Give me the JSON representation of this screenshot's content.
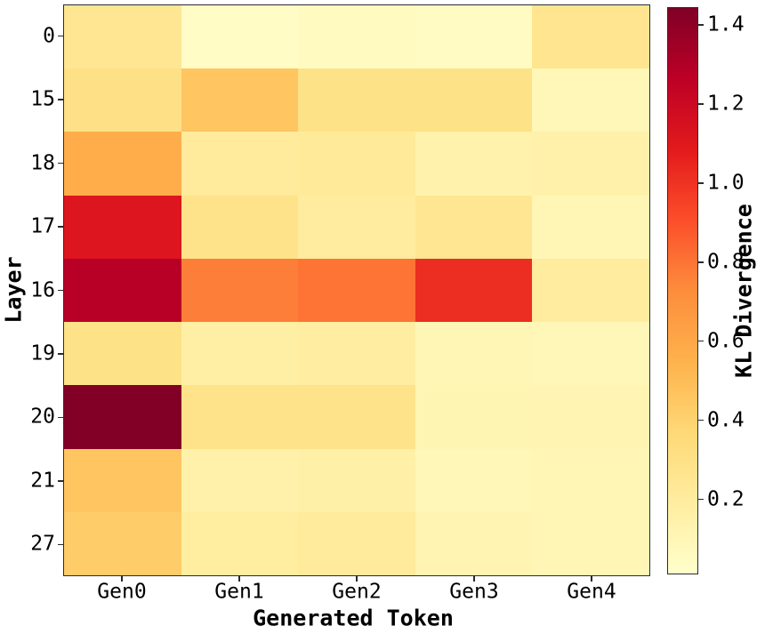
{
  "figure": {
    "background": "#ffffff",
    "spine_color": "#2b2b2b",
    "text_color": "#000000"
  },
  "chart_data": {
    "type": "heatmap",
    "title": "",
    "xlabel": "Generated Token",
    "ylabel": "Layer",
    "colorbar_label": "KL Divergence",
    "x_categories": [
      "Gen0",
      "Gen1",
      "Gen2",
      "Gen3",
      "Gen4"
    ],
    "y_categories": [
      "0",
      "15",
      "18",
      "17",
      "16",
      "19",
      "20",
      "21",
      "27"
    ],
    "values": [
      [
        0.25,
        0.04,
        0.06,
        0.05,
        0.26
      ],
      [
        0.3,
        0.46,
        0.29,
        0.29,
        0.09
      ],
      [
        0.57,
        0.21,
        0.22,
        0.14,
        0.15
      ],
      [
        1.12,
        0.28,
        0.2,
        0.25,
        0.1
      ],
      [
        1.28,
        0.77,
        0.8,
        1.02,
        0.2
      ],
      [
        0.29,
        0.17,
        0.18,
        0.1,
        0.09
      ],
      [
        1.44,
        0.28,
        0.28,
        0.11,
        0.12
      ],
      [
        0.46,
        0.15,
        0.16,
        0.09,
        0.1
      ],
      [
        0.43,
        0.19,
        0.21,
        0.12,
        0.1
      ]
    ],
    "vmin": 0.01,
    "vmax": 1.445,
    "colormap": {
      "name": "YlOrRd",
      "stops": [
        {
          "pos": 0.0,
          "color": "#ffffcc"
        },
        {
          "pos": 0.125,
          "color": "#ffeda0"
        },
        {
          "pos": 0.25,
          "color": "#fed976"
        },
        {
          "pos": 0.375,
          "color": "#feb24c"
        },
        {
          "pos": 0.5,
          "color": "#fd8d3c"
        },
        {
          "pos": 0.625,
          "color": "#fc4e2a"
        },
        {
          "pos": 0.75,
          "color": "#e31a1c"
        },
        {
          "pos": 0.875,
          "color": "#bd0026"
        },
        {
          "pos": 1.0,
          "color": "#800026"
        }
      ]
    },
    "colorbar_ticks": [
      {
        "value": 0.2,
        "label": "0.2"
      },
      {
        "value": 0.4,
        "label": "0.4"
      },
      {
        "value": 0.6,
        "label": "0.6"
      },
      {
        "value": 0.8,
        "label": "0.8"
      },
      {
        "value": 1.0,
        "label": "1.0"
      },
      {
        "value": 1.2,
        "label": "1.2"
      },
      {
        "value": 1.4,
        "label": "1.4"
      }
    ],
    "grid": false,
    "legend_position": "right-colorbar"
  }
}
